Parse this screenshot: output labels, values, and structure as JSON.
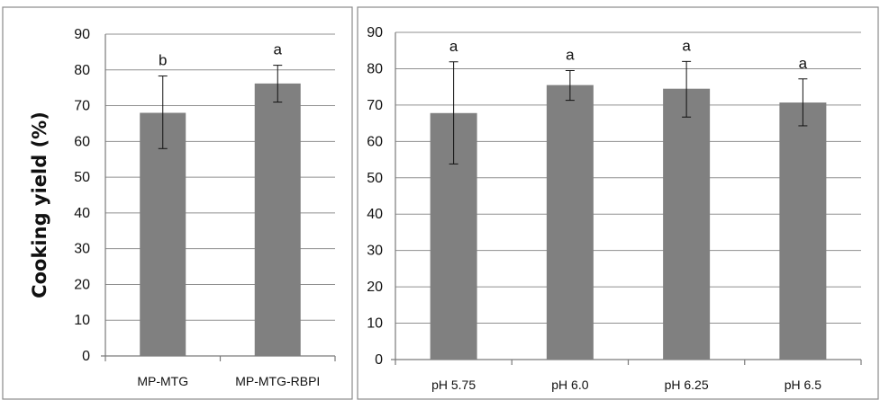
{
  "chart_data": [
    {
      "type": "bar",
      "title": "",
      "xlabel": "",
      "ylabel": "Cooking yield (%)",
      "ylim": [
        0,
        90
      ],
      "yticks": [
        0,
        10,
        20,
        30,
        40,
        50,
        60,
        70,
        80,
        90
      ],
      "categories": [
        "MP-MTG",
        "MP-MTG-RBPI"
      ],
      "values": [
        68,
        76.2
      ],
      "error_low": [
        58,
        71
      ],
      "error_high": [
        78.3,
        81.3
      ],
      "annotations": [
        "b",
        "a"
      ],
      "grid": true,
      "bar_color": "#808080"
    },
    {
      "type": "bar",
      "title": "",
      "xlabel": "",
      "ylabel": "",
      "ylim": [
        0,
        90
      ],
      "yticks": [
        0,
        10,
        20,
        30,
        40,
        50,
        60,
        70,
        80,
        90
      ],
      "categories": [
        "pH 5.75",
        "pH 6.0",
        "pH 6.25",
        "pH 6.5"
      ],
      "values": [
        67.8,
        75.5,
        74.5,
        70.7
      ],
      "error_low": [
        53.8,
        71.3,
        66.7,
        64.3
      ],
      "error_high": [
        81.9,
        79.5,
        82,
        77.2
      ],
      "annotations": [
        "a",
        "a",
        "a",
        "a"
      ],
      "grid": true,
      "bar_color": "#808080"
    }
  ]
}
